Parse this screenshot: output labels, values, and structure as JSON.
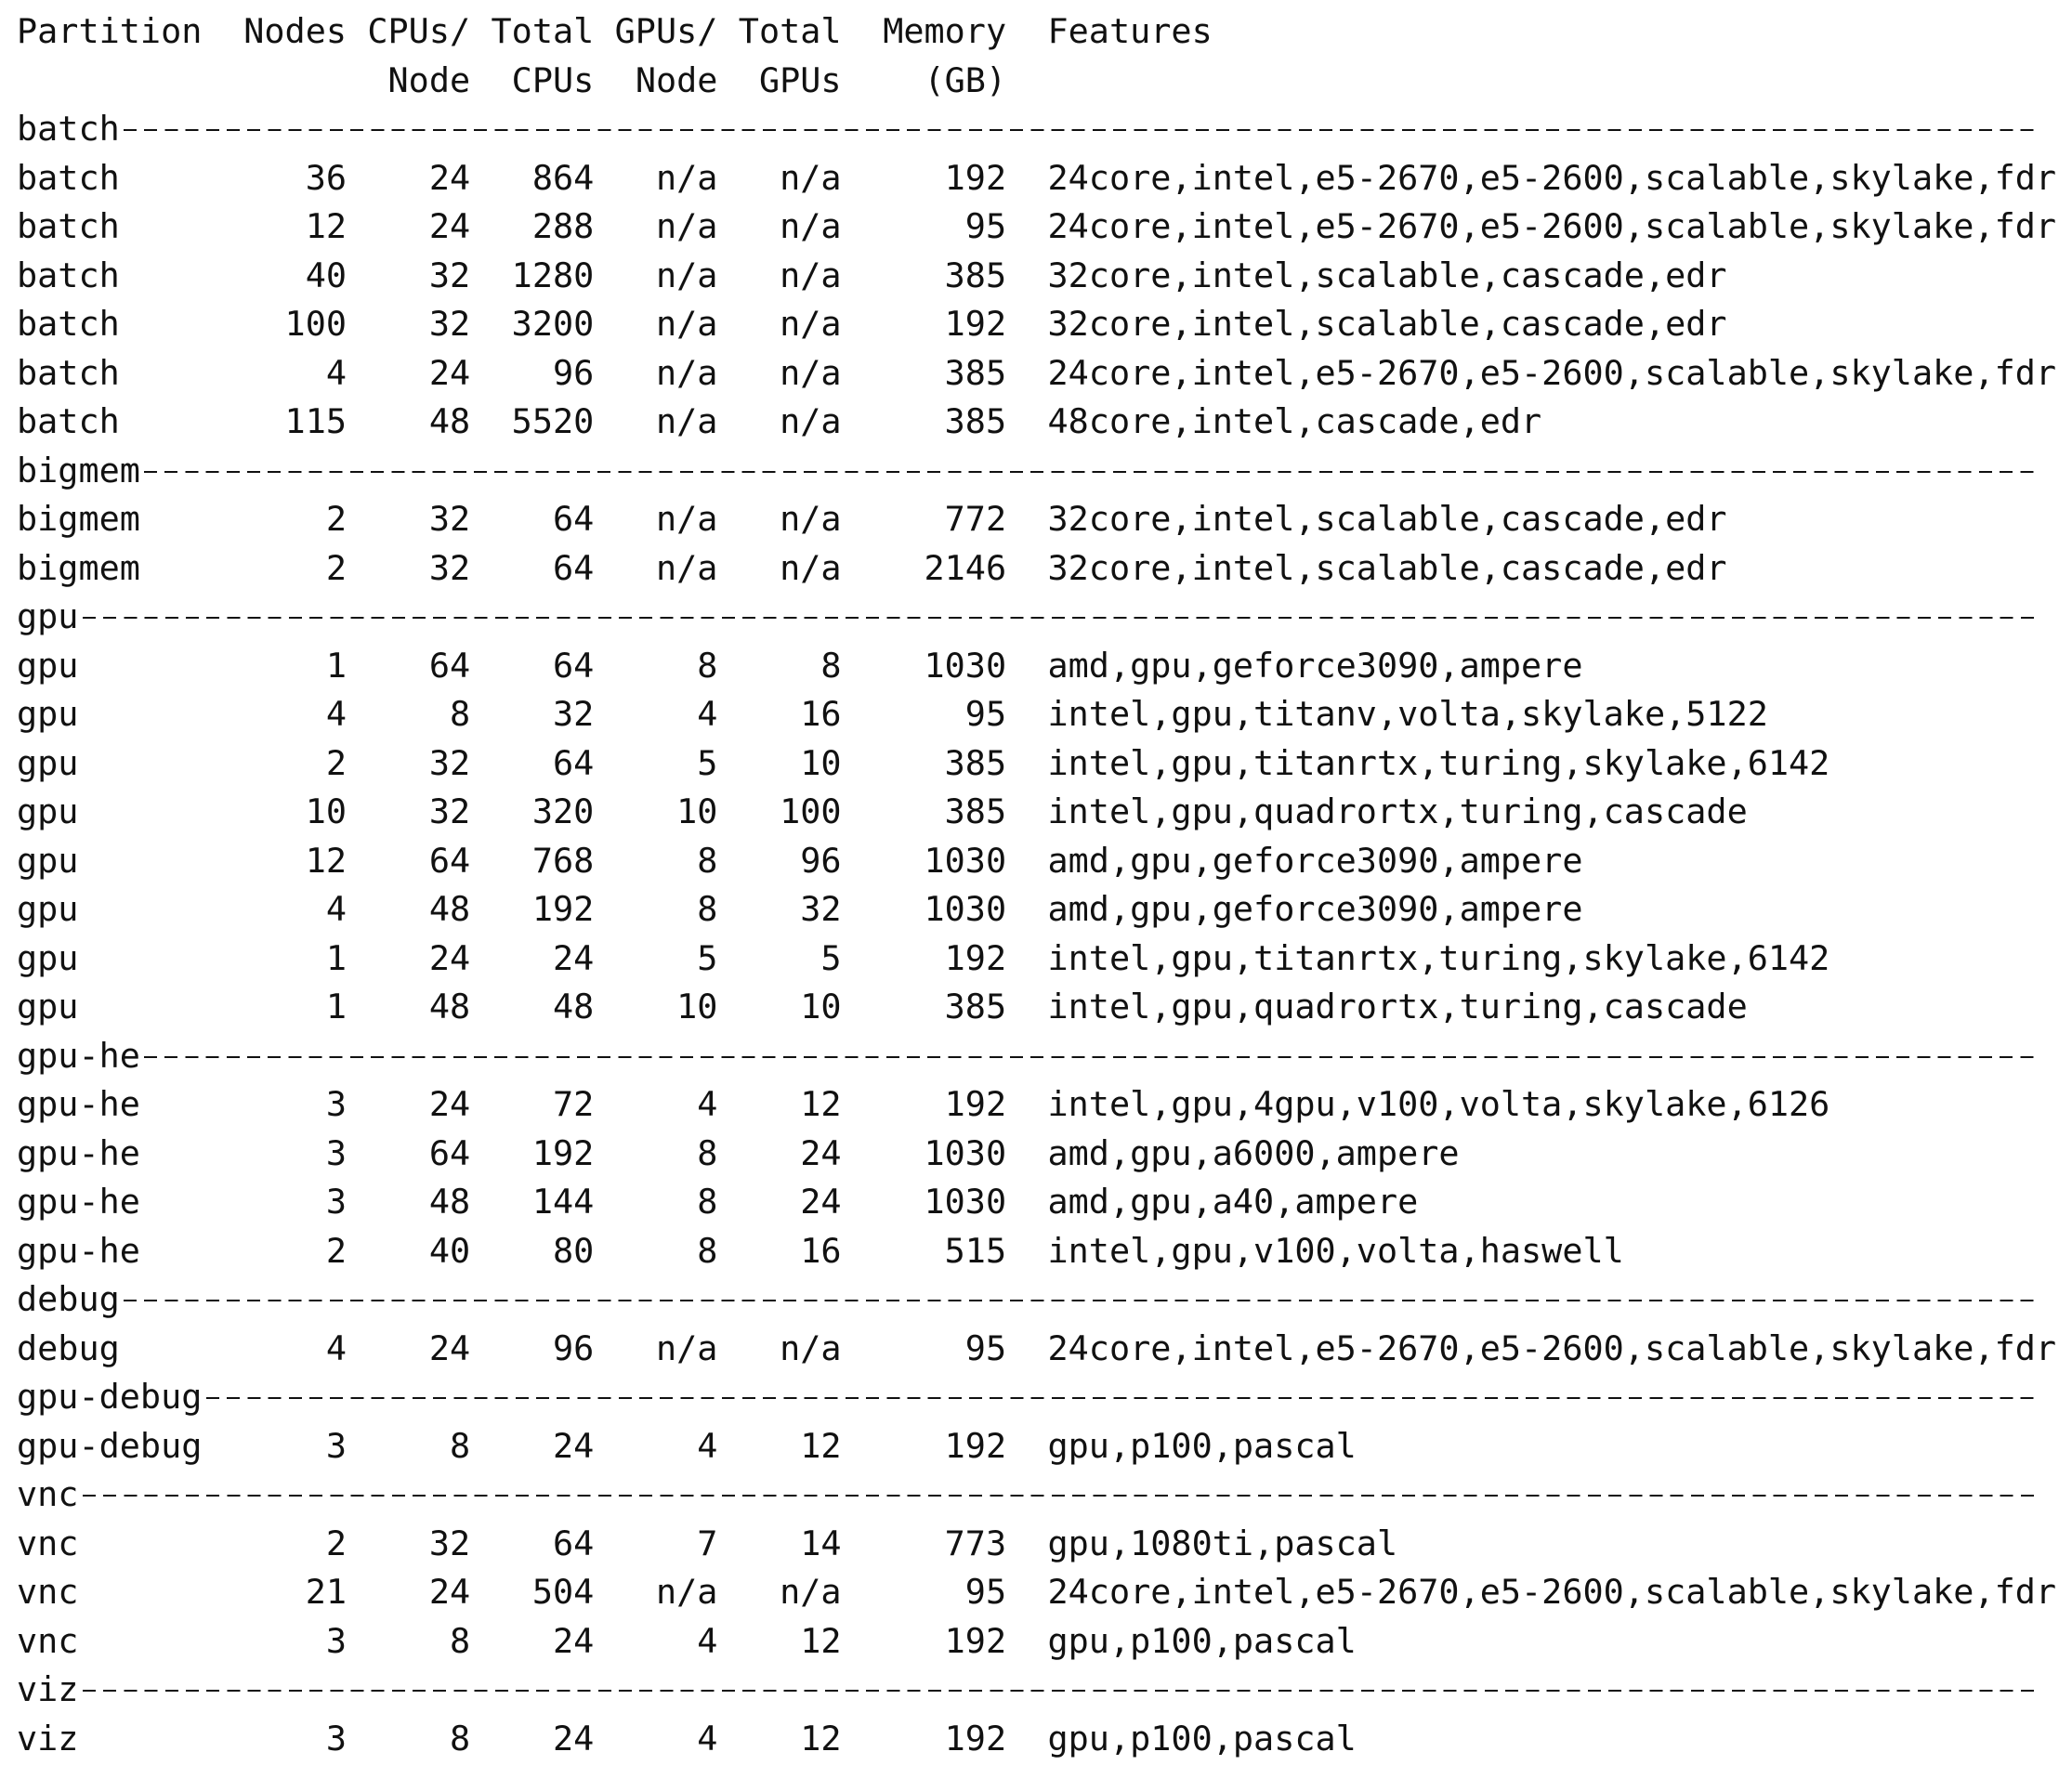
{
  "header": {
    "columns": [
      [
        "Partition"
      ],
      [
        "Nodes"
      ],
      [
        "CPUs/",
        "Node"
      ],
      [
        "Total",
        "CPUs"
      ],
      [
        "GPUs/",
        "Node"
      ],
      [
        "Total",
        "GPUs"
      ],
      [
        "Memory",
        "(GB)"
      ],
      [
        "Features"
      ]
    ]
  },
  "groups": [
    {
      "name": "batch",
      "rows": [
        [
          "batch",
          36,
          24,
          864,
          "n/a",
          "n/a",
          192,
          "24core,intel,e5-2670,e5-2600,scalable,skylake,fdr"
        ],
        [
          "batch",
          12,
          24,
          288,
          "n/a",
          "n/a",
          95,
          "24core,intel,e5-2670,e5-2600,scalable,skylake,fdr"
        ],
        [
          "batch",
          40,
          32,
          1280,
          "n/a",
          "n/a",
          385,
          "32core,intel,scalable,cascade,edr"
        ],
        [
          "batch",
          100,
          32,
          3200,
          "n/a",
          "n/a",
          192,
          "32core,intel,scalable,cascade,edr"
        ],
        [
          "batch",
          4,
          24,
          96,
          "n/a",
          "n/a",
          385,
          "24core,intel,e5-2670,e5-2600,scalable,skylake,fdr"
        ],
        [
          "batch",
          115,
          48,
          5520,
          "n/a",
          "n/a",
          385,
          "48core,intel,cascade,edr"
        ]
      ]
    },
    {
      "name": "bigmem",
      "rows": [
        [
          "bigmem",
          2,
          32,
          64,
          "n/a",
          "n/a",
          772,
          "32core,intel,scalable,cascade,edr"
        ],
        [
          "bigmem",
          2,
          32,
          64,
          "n/a",
          "n/a",
          2146,
          "32core,intel,scalable,cascade,edr"
        ]
      ]
    },
    {
      "name": "gpu",
      "rows": [
        [
          "gpu",
          1,
          64,
          64,
          8,
          8,
          1030,
          "amd,gpu,geforce3090,ampere"
        ],
        [
          "gpu",
          4,
          8,
          32,
          4,
          16,
          95,
          "intel,gpu,titanv,volta,skylake,5122"
        ],
        [
          "gpu",
          2,
          32,
          64,
          5,
          10,
          385,
          "intel,gpu,titanrtx,turing,skylake,6142"
        ],
        [
          "gpu",
          10,
          32,
          320,
          10,
          100,
          385,
          "intel,gpu,quadrortx,turing,cascade"
        ],
        [
          "gpu",
          12,
          64,
          768,
          8,
          96,
          1030,
          "amd,gpu,geforce3090,ampere"
        ],
        [
          "gpu",
          4,
          48,
          192,
          8,
          32,
          1030,
          "amd,gpu,geforce3090,ampere"
        ],
        [
          "gpu",
          1,
          24,
          24,
          5,
          5,
          192,
          "intel,gpu,titanrtx,turing,skylake,6142"
        ],
        [
          "gpu",
          1,
          48,
          48,
          10,
          10,
          385,
          "intel,gpu,quadrortx,turing,cascade"
        ]
      ]
    },
    {
      "name": "gpu-he",
      "rows": [
        [
          "gpu-he",
          3,
          24,
          72,
          4,
          12,
          192,
          "intel,gpu,4gpu,v100,volta,skylake,6126"
        ],
        [
          "gpu-he",
          3,
          64,
          192,
          8,
          24,
          1030,
          "amd,gpu,a6000,ampere"
        ],
        [
          "gpu-he",
          3,
          48,
          144,
          8,
          24,
          1030,
          "amd,gpu,a40,ampere"
        ],
        [
          "gpu-he",
          2,
          40,
          80,
          8,
          16,
          515,
          "intel,gpu,v100,volta,haswell"
        ]
      ]
    },
    {
      "name": "debug",
      "rows": [
        [
          "debug",
          4,
          24,
          96,
          "n/a",
          "n/a",
          95,
          "24core,intel,e5-2670,e5-2600,scalable,skylake,fdr"
        ]
      ]
    },
    {
      "name": "gpu-debug",
      "rows": [
        [
          "gpu-debug",
          3,
          8,
          24,
          4,
          12,
          192,
          "gpu,p100,pascal"
        ]
      ]
    },
    {
      "name": "vnc",
      "rows": [
        [
          "vnc",
          2,
          32,
          64,
          7,
          14,
          773,
          "gpu,1080ti,pascal"
        ],
        [
          "vnc",
          21,
          24,
          504,
          "n/a",
          "n/a",
          95,
          "24core,intel,e5-2670,e5-2600,scalable,skylake,fdr"
        ],
        [
          "vnc",
          3,
          8,
          24,
          4,
          12,
          192,
          "gpu,p100,pascal"
        ]
      ]
    },
    {
      "name": "viz",
      "rows": [
        [
          "viz",
          3,
          8,
          24,
          4,
          12,
          192,
          "gpu,p100,pascal"
        ]
      ]
    }
  ]
}
